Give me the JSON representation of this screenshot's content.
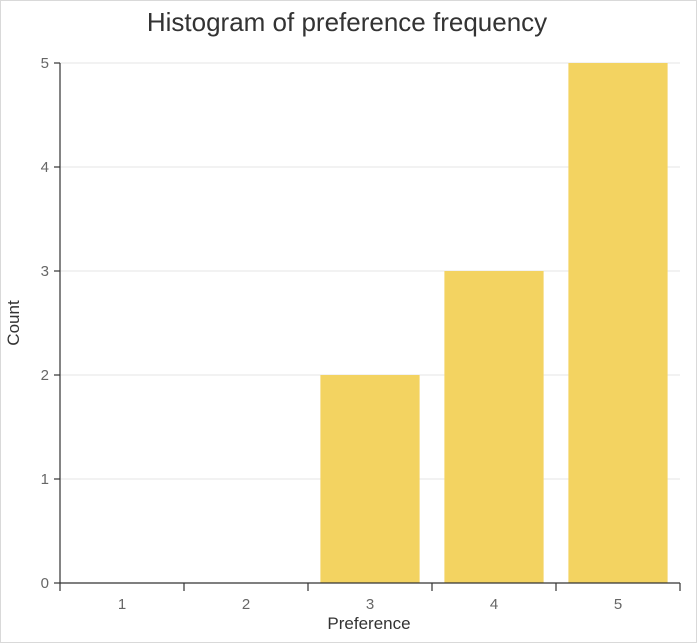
{
  "chart_data": {
    "type": "bar",
    "title": "Histogram of preference frequency",
    "xlabel": "Preference",
    "ylabel": "Count",
    "categories": [
      "1",
      "2",
      "3",
      "4",
      "5"
    ],
    "values": [
      0,
      0,
      2,
      3,
      5
    ],
    "ylim": [
      0,
      5
    ],
    "yticks": [
      0,
      1,
      2,
      3,
      4,
      5
    ],
    "grid": true,
    "bar_color": "#f3d361"
  }
}
